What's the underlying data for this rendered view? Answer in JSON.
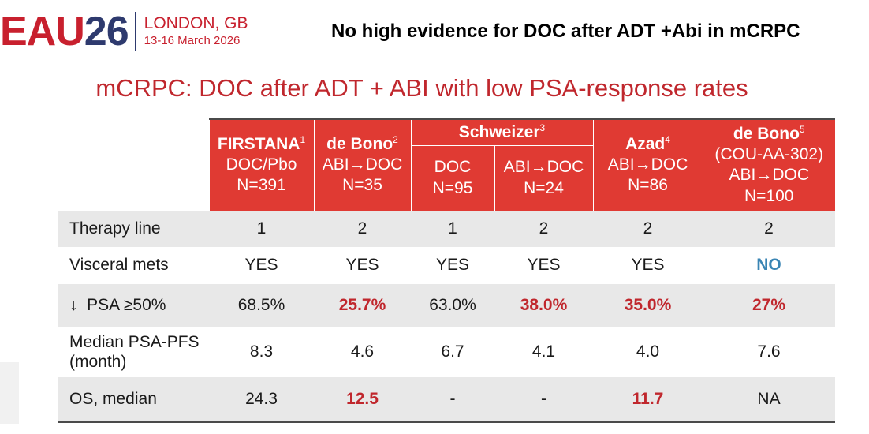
{
  "logo": {
    "brand": "EAU",
    "year": "26",
    "city": "LONDON, GB",
    "dates": "13-16 March 2026"
  },
  "title": "No high evidence for DOC after ADT +Abi in mCRPC",
  "subtitle": "mCRPC: DOC after ADT + ABI with low PSA-response rates",
  "table": {
    "groups": {
      "firstana": {
        "name": "FIRSTANA",
        "sup": "1",
        "arm": "DOC/Pbo",
        "n": "N=391"
      },
      "debono2": {
        "name": "de Bono",
        "sup": "2",
        "arm": "ABI→DOC",
        "n": "N=35"
      },
      "schweizer": {
        "name": "Schweizer",
        "sup": "3",
        "sub1": {
          "arm": "DOC",
          "n": "N=95"
        },
        "sub2": {
          "arm": "ABI→DOC",
          "n": "N=24"
        }
      },
      "azad": {
        "name": "Azad",
        "sup": "4",
        "arm": "ABI→DOC",
        "n": "N=86"
      },
      "debono5": {
        "name": "de Bono",
        "sup": "5",
        "study": "(COU-AA-302)",
        "arm": "ABI→DOC",
        "n": "N=100"
      }
    },
    "rows": {
      "therapy": {
        "label": "Therapy line",
        "v": [
          "1",
          "2",
          "1",
          "2",
          "2",
          "2"
        ]
      },
      "visceral": {
        "label": "Visceral mets",
        "v": [
          "YES",
          "YES",
          "YES",
          "YES",
          "YES",
          "NO"
        ]
      },
      "psa": {
        "label_arrow": "↓",
        "label": "PSA ≥50%",
        "v": [
          "68.5%",
          "25.7%",
          "63.0%",
          "38.0%",
          "35.0%",
          "27%"
        ]
      },
      "pfs": {
        "label1": "Median PSA-PFS",
        "label2": "(month)",
        "v": [
          "8.3",
          "4.6",
          "6.7",
          "4.1",
          "4.0",
          "7.6"
        ]
      },
      "os": {
        "label": "OS, median",
        "v": [
          "24.3",
          "12.5",
          "-",
          "-",
          "11.7",
          "NA"
        ]
      }
    }
  },
  "colors": {
    "header_red": "#e03a33",
    "highlight_red": "#c0272d",
    "highlight_blue": "#3a85b4",
    "shade_gray": "#e8e8e8"
  }
}
